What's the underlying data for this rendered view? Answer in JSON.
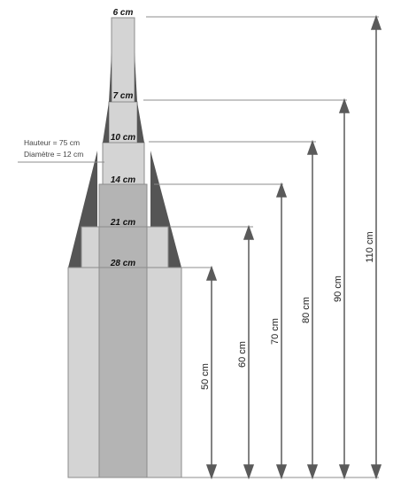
{
  "note": {
    "height_line": "Hauteur = 75 cm",
    "diameter_line": "Diamètre = 12 cm"
  },
  "width_labels": [
    "6 cm",
    "7 cm",
    "10 cm",
    "14 cm",
    "21 cm",
    "28 cm"
  ],
  "height_labels": [
    "50 cm",
    "60 cm",
    "70 cm",
    "80 cm",
    "90 cm",
    "110 cm"
  ],
  "colors": {
    "light_gray": "#d4d4d4",
    "mid_gray": "#b4b4b4",
    "dark_gray": "#555555",
    "outline": "#8c8c8c",
    "arrow": "#5a5a5a"
  }
}
